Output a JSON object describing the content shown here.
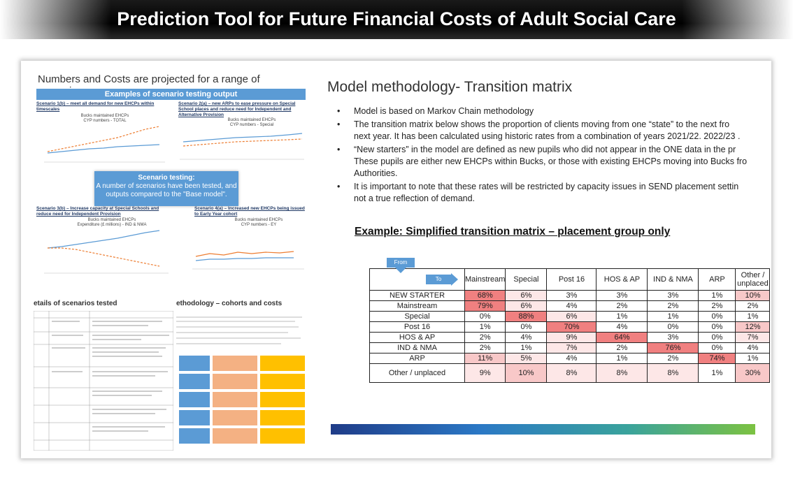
{
  "banner": {
    "title": "Prediction Tool for Future Financial Costs of Adult Social Care"
  },
  "left_panel": {
    "title": "Numbers and Costs are projected for a range of scenarios",
    "examples_bar": "Examples of scenario testing output",
    "scenario_1": {
      "heading": "Scenario 1(b) – meet all demand for new EHCPs within timescales",
      "chart_title": "Bucks maintained EHCPs",
      "chart_subtitle": "CYP numbers - TOTAL"
    },
    "scenario_2": {
      "heading": "Scenario 2(a) – new ARPs to ease pressure on Special School places and reduce need for Independent and Alternative Provision",
      "chart_title": "Bucks maintained EHCPs",
      "chart_subtitle": "CYP numbers - Special"
    },
    "scenario_3": {
      "heading": "Scenario 3(b) – Increase capacity at Special Schools and reduce need for Independent Provision",
      "chart_title": "Bucks maintained EHCPs",
      "chart_subtitle": "Expenditure (£ millions) - IND & NMA"
    },
    "scenario_4": {
      "heading": "Scenario 4(a) – Increased new EHCPs being issued to Early Year cohort",
      "chart_title": "Bucks maintained EHCPs",
      "chart_subtitle": "CYP numbers - EY"
    },
    "scenario_testing": {
      "title": "Scenario testing:",
      "body": "A number of scenarios have been tested, and outputs compared to the \"Base model\"."
    },
    "details_title": "etails of scenarios tested",
    "cohorts_title": "ethodology – cohorts and costs"
  },
  "right_panel": {
    "title": "Model methodology- Transition matrix",
    "bullets": [
      {
        "l1": "Model is based on Markov Chain methodology",
        "l2": ""
      },
      {
        "l1": "The transition matrix below shows the proportion of clients moving from one “state” to the next fro",
        "l2": "next year. It has been calculated using historic rates from a combination of years 2021/22. 2022/23 ."
      },
      {
        "l1": "“New starters” in the model are defined as new pupils who did not appear in the ONE data in the pr",
        "l2": "These pupils are either new EHCPs within Bucks, or those with existing EHCPs moving into Bucks fro",
        "l3": "Authorities."
      },
      {
        "l1": "It is important to note that these rates will be restricted by capacity issues in SEND placement settin",
        "l2": "not a true reflection of demand."
      }
    ],
    "example_title": "Example: Simplified transition matrix – placement group only",
    "matrix": {
      "from_label": "From",
      "to_label": "To",
      "columns": [
        "Mainstream",
        "Special",
        "Post 16",
        "HOS & AP",
        "IND & NMA",
        "ARP",
        "Other / unplaced"
      ],
      "rows": [
        {
          "label": "NEW STARTER",
          "values": [
            "68%",
            "6%",
            "3%",
            "3%",
            "3%",
            "1%",
            "10%"
          ]
        },
        {
          "label": "Mainstream",
          "values": [
            "79%",
            "6%",
            "4%",
            "2%",
            "2%",
            "2%",
            "2%"
          ]
        },
        {
          "label": "Special",
          "values": [
            "0%",
            "88%",
            "6%",
            "1%",
            "1%",
            "0%",
            "1%"
          ]
        },
        {
          "label": "Post 16",
          "values": [
            "1%",
            "0%",
            "70%",
            "4%",
            "0%",
            "0%",
            "12%"
          ]
        },
        {
          "label": "HOS & AP",
          "values": [
            "2%",
            "4%",
            "9%",
            "64%",
            "3%",
            "0%",
            "7%"
          ]
        },
        {
          "label": "IND & NMA",
          "values": [
            "2%",
            "1%",
            "7%",
            "2%",
            "76%",
            "0%",
            "4%"
          ]
        },
        {
          "label": "ARP",
          "values": [
            "11%",
            "5%",
            "4%",
            "1%",
            "2%",
            "74%",
            "1%"
          ]
        },
        {
          "label": "Other / unplaced",
          "values": [
            "9%",
            "10%",
            "8%",
            "8%",
            "8%",
            "1%",
            "30%"
          ]
        }
      ]
    }
  },
  "colors": {
    "accent_blue": "#5b9bd5",
    "heat_high": "#f08080",
    "heat_mid": "#f8c8c8",
    "heat_low": "#fde7e7"
  }
}
